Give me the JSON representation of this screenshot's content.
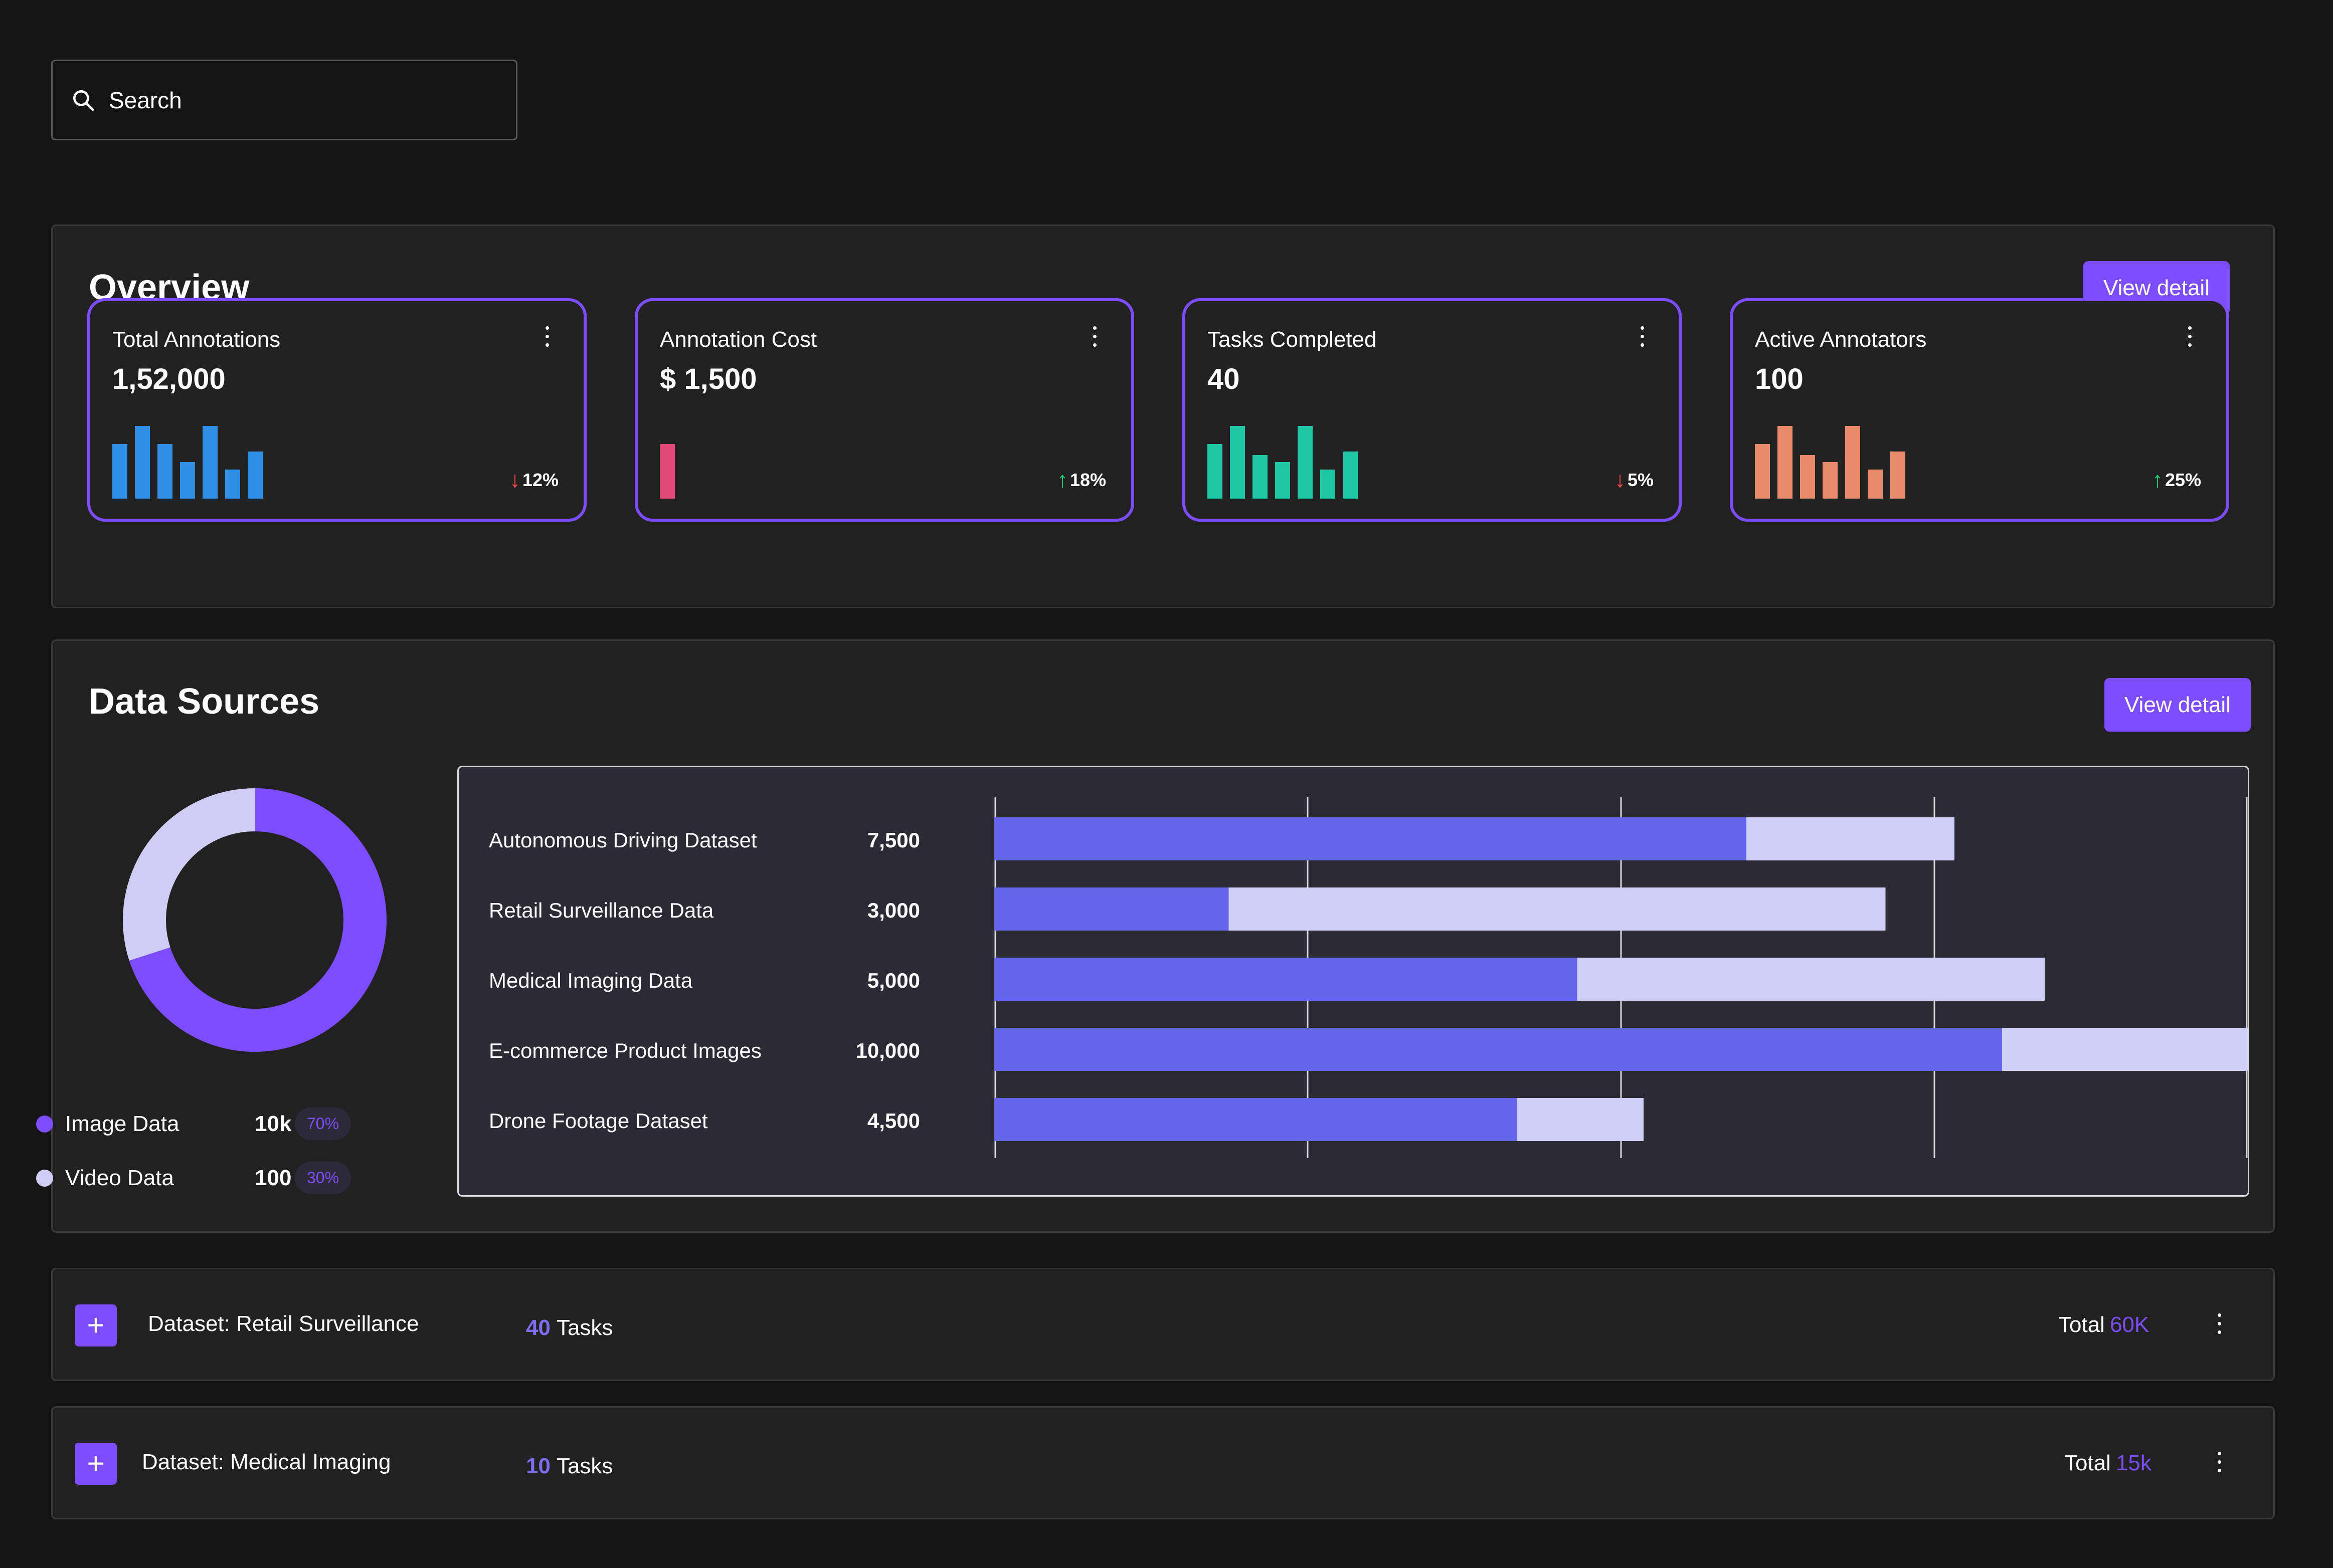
{
  "search": {
    "placeholder": "Search",
    "icon": "search-icon"
  },
  "overview": {
    "title": "Overview",
    "view_detail": "View detail",
    "cards": [
      {
        "label": "Total Annotations",
        "value": "1,52,000",
        "delta": "12%",
        "direction": "down",
        "color": "#2f8fe6",
        "bars": [
          0.75,
          1.0,
          0.75,
          0.5,
          1.0,
          0.4,
          0.65
        ]
      },
      {
        "label": "Annotation Cost",
        "value": "$ 1,500",
        "delta": "18%",
        "direction": "up",
        "color": "#e04a78",
        "bars": [
          0.75
        ]
      },
      {
        "label": "Tasks Completed",
        "value": "40",
        "delta": "5%",
        "direction": "down",
        "color": "#1fc7a4",
        "bars": [
          0.75,
          1.0,
          0.6,
          0.5,
          1.0,
          0.4,
          0.65
        ]
      },
      {
        "label": "Active Annotators",
        "value": "100",
        "delta": "25%",
        "direction": "up",
        "color": "#e98b6a",
        "bars": [
          0.75,
          1.0,
          0.6,
          0.5,
          1.0,
          0.4,
          0.65
        ]
      }
    ],
    "colors": {
      "down": "#ff4a4a",
      "up": "#1fd27a"
    }
  },
  "data_sources": {
    "title": "Data Sources",
    "view_detail": "View detail",
    "donut": [
      {
        "name": "Image Data",
        "value": "10k",
        "percent": "70%",
        "fraction": 0.7,
        "color": "#7c4dff"
      },
      {
        "name": "Video Data",
        "value": "100",
        "percent": "30%",
        "fraction": 0.3,
        "color": "#d0cdf5"
      }
    ]
  },
  "chart_data": {
    "type": "bar",
    "orientation": "horizontal",
    "stacked": true,
    "categories": [
      "Autonomous Driving Dataset",
      "Retail Surveillance Data",
      "Medical Imaging Data",
      "E-commerce Product Images",
      "Drone Footage Dataset"
    ],
    "value_labels": [
      "7,500",
      "3,000",
      "5,000",
      "10,000",
      "4,500"
    ],
    "series": [
      {
        "values": [
          6000,
          1870,
          4650,
          8040,
          4170
        ],
        "color": "#6366e8"
      },
      {
        "values": [
          1660,
          5240,
          3730,
          1960,
          1010
        ],
        "color": "#d0cff7"
      }
    ],
    "xlim": [
      0,
      10000
    ],
    "grid": true
  },
  "tasks": [
    {
      "name": "Dataset: Retail Surveillance",
      "count": "40",
      "count_label": "Tasks",
      "total_label": "Total",
      "total": "60K"
    },
    {
      "name": "Dataset: Medical Imaging",
      "count": "10",
      "count_label": "Tasks",
      "total_label": "Total",
      "total": "15k"
    }
  ]
}
